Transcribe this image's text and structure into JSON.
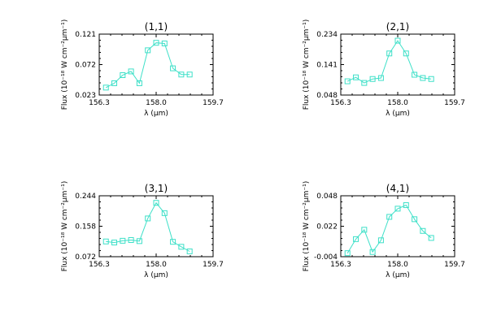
{
  "chart_data": [
    {
      "type": "line",
      "title": "(1,1)",
      "xlabel": "λ (μm)",
      "ylabel": "Flux (10⁻¹⁸ W cm⁻²μm⁻¹)",
      "xlim": [
        156.3,
        159.7
      ],
      "ylim": [
        0.023,
        0.121
      ],
      "xticks": [
        "156.3",
        "158.0",
        "159.7"
      ],
      "yticks": [
        "0.023",
        "0.072",
        "0.121"
      ],
      "series": [
        {
          "color": "#3ee0c8",
          "marker": "square",
          "x": [
            156.5,
            156.75,
            157.0,
            157.25,
            157.5,
            157.75,
            158.0,
            158.25,
            158.5,
            158.75,
            159.0
          ],
          "y": [
            0.035,
            0.042,
            0.055,
            0.061,
            0.042,
            0.095,
            0.107,
            0.106,
            0.066,
            0.056,
            0.056
          ]
        }
      ]
    },
    {
      "type": "line",
      "title": "(2,1)",
      "xlabel": "λ (μm)",
      "ylabel": "Flux (10⁻¹⁸ W cm⁻²μm⁻¹)",
      "xlim": [
        156.3,
        159.7
      ],
      "ylim": [
        0.048,
        0.234
      ],
      "xticks": [
        "156.3",
        "158.0",
        "159.7"
      ],
      "yticks": [
        "0.048",
        "0.141",
        "0.234"
      ],
      "series": [
        {
          "color": "#3ee0c8",
          "marker": "square",
          "x": [
            156.5,
            156.75,
            157.0,
            157.25,
            157.5,
            157.75,
            158.0,
            158.25,
            158.5,
            158.75,
            159.0
          ],
          "y": [
            0.09,
            0.102,
            0.085,
            0.097,
            0.1,
            0.175,
            0.214,
            0.175,
            0.11,
            0.1,
            0.097
          ]
        }
      ]
    },
    {
      "type": "line",
      "title": "(3,1)",
      "xlabel": "λ (μm)",
      "ylabel": "Flux (10⁻¹⁸ W cm⁻²μm⁻¹)",
      "xlim": [
        156.3,
        159.7
      ],
      "ylim": [
        0.072,
        0.244
      ],
      "xticks": [
        "156.3",
        "158.0",
        "159.7"
      ],
      "yticks": [
        "0.072",
        "0.158",
        "0.244"
      ],
      "series": [
        {
          "color": "#3ee0c8",
          "marker": "square",
          "x": [
            156.5,
            156.75,
            157.0,
            157.25,
            157.5,
            157.75,
            158.0,
            158.25,
            158.5,
            158.75,
            159.0
          ],
          "y": [
            0.115,
            0.112,
            0.117,
            0.119,
            0.116,
            0.18,
            0.224,
            0.195,
            0.114,
            0.1,
            0.087
          ]
        }
      ]
    },
    {
      "type": "line",
      "title": "(4,1)",
      "xlabel": "λ (μm)",
      "ylabel": "Flux (10⁻¹⁸ W cm⁻²μm⁻¹)",
      "xlim": [
        156.3,
        159.7
      ],
      "ylim": [
        -0.004,
        0.048
      ],
      "xticks": [
        "156.3",
        "158.0",
        "159.7"
      ],
      "yticks": [
        "-0.004",
        "0.022",
        "0.048"
      ],
      "series": [
        {
          "color": "#3ee0c8",
          "marker": "square",
          "x": [
            156.5,
            156.75,
            157.0,
            157.25,
            157.5,
            157.75,
            158.0,
            158.25,
            158.5,
            158.75,
            159.0
          ],
          "y": [
            -0.001,
            0.011,
            0.019,
            -0.0,
            0.01,
            0.03,
            0.037,
            0.04,
            0.028,
            0.018,
            0.012
          ]
        }
      ]
    }
  ]
}
